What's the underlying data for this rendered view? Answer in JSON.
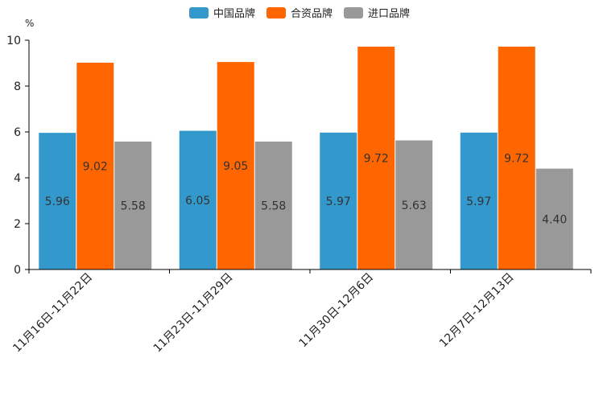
{
  "chart_data": {
    "type": "bar",
    "title": "",
    "unit_label": "%",
    "xlabel": "",
    "ylabel": "",
    "ylim": [
      0,
      10
    ],
    "yticks": [
      0,
      2,
      4,
      6,
      8,
      10
    ],
    "legend_position": "top-center",
    "categories": [
      "11月16日-11月22日",
      "11月23日-11月29日",
      "11月30日-12月6日",
      "12月7日-12月13日"
    ],
    "series": [
      {
        "name": "中国品牌",
        "color": "#3399cc",
        "values": [
          5.96,
          6.05,
          5.97,
          5.97
        ],
        "labels": [
          "5.96",
          "6.05",
          "5.97",
          "5.97"
        ]
      },
      {
        "name": "合资品牌",
        "color": "#ff6600",
        "values": [
          9.02,
          9.05,
          9.72,
          9.72
        ],
        "labels": [
          "9.02",
          "9.05",
          "9.72",
          "9.72"
        ]
      },
      {
        "name": "进口品牌",
        "color": "#999999",
        "values": [
          5.58,
          5.58,
          5.63,
          4.4
        ],
        "labels": [
          "5.58",
          "5.58",
          "5.63",
          "4.40"
        ]
      }
    ]
  }
}
